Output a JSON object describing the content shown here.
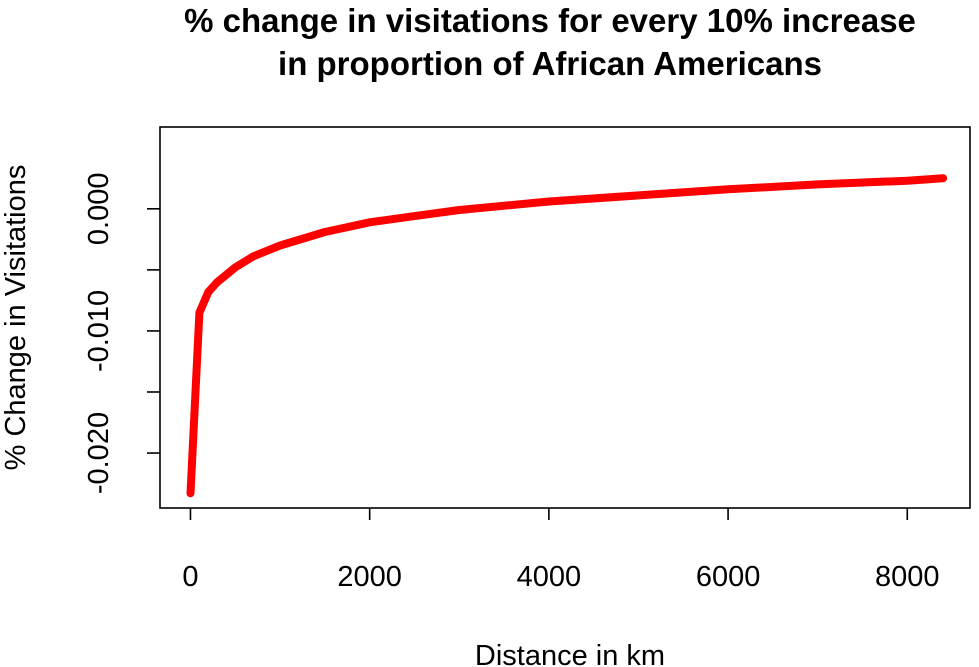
{
  "chart_data": {
    "type": "line",
    "title": "% change in visitations for every 10% increase in proportion of African Americans",
    "title_lines": [
      "% change in visitations for every 10% increase",
      "in proportion of African Americans"
    ],
    "xlabel": "Distance in km",
    "ylabel": "% Change in Visitations",
    "xlim": [
      -340,
      8700
    ],
    "ylim": [
      -0.0245,
      0.0067
    ],
    "x_ticks": [
      0,
      2000,
      4000,
      6000,
      8000
    ],
    "x_tick_labels": [
      "0",
      "2000",
      "4000",
      "6000",
      "8000"
    ],
    "y_ticks": [
      -0.02,
      -0.015,
      -0.01,
      -0.005,
      0.0
    ],
    "y_tick_labels": [
      "-0.020",
      "",
      "-0.010",
      "",
      "0.000"
    ],
    "grid": false,
    "series": [
      {
        "color": "#ff0000",
        "x": [
          0,
          100,
          200,
          300,
          500,
          700,
          1000,
          1500,
          2000,
          2500,
          3000,
          4000,
          5000,
          6000,
          7000,
          8000,
          8400
        ],
        "y": [
          -0.0233,
          -0.0085,
          -0.0068,
          -0.006,
          -0.0048,
          -0.0039,
          -0.003,
          -0.0019,
          -0.0011,
          -0.0006,
          -0.0001,
          0.0006,
          0.0011,
          0.0016,
          0.002,
          0.0023,
          0.0025
        ]
      }
    ]
  }
}
